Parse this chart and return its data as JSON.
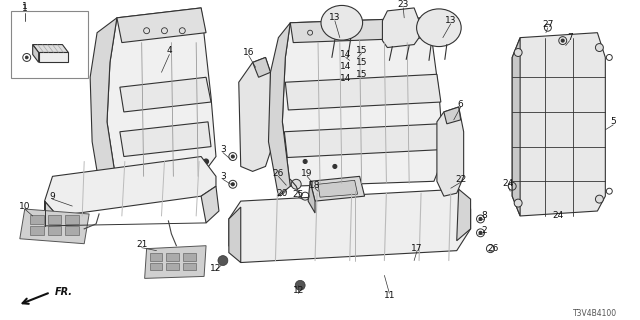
{
  "background_color": "#ffffff",
  "diagram_code": "T3V4B4100",
  "line_color": "#333333",
  "line_color_dark": "#111111",
  "fill_light": "#f2f2f2",
  "fill_mid": "#e0e0e0",
  "fill_dark": "#c8c8c8",
  "font_size_label": 6.5,
  "font_size_code": 5.5,
  "lw_main": 0.8,
  "lw_thin": 0.5,
  "lw_thick": 1.0
}
